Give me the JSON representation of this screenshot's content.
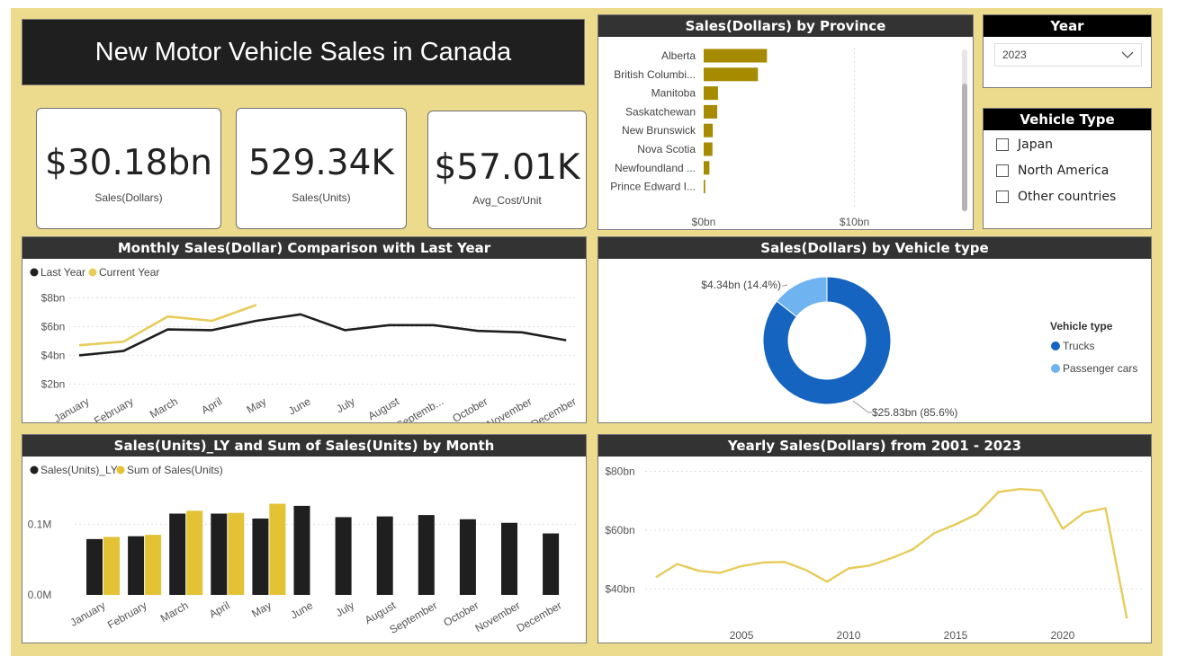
{
  "dashboard_title": "New Motor Vehicle Sales in Canada",
  "kpis": [
    {
      "value": "$30.18bn",
      "label": "Sales(Dollars)"
    },
    {
      "value": "529.34K",
      "label": "Sales(Units)"
    },
    {
      "value": "$57.01K",
      "label": "Avg_Cost/Unit"
    }
  ],
  "year_slicer": {
    "title": "Year",
    "selected": "2023"
  },
  "vehicle_type_slicer": {
    "title": "Vehicle Type",
    "options": [
      "Japan",
      "North America",
      "Other countries"
    ]
  },
  "colors": {
    "background": "#ECDB8C",
    "header": "#333333",
    "gold": "#A68A00",
    "yellow": "#E6CC5A",
    "dark": "#1F1F1F",
    "blue": "#1565C0",
    "lightblue": "#6FB4F0",
    "bar_yellow": "#E3C233"
  },
  "icons": {
    "dropdown": "chevron-down-icon",
    "checkbox": "checkbox-icon",
    "legend_dot": "legend-dot-icon"
  },
  "chart_data": [
    {
      "id": "province",
      "type": "bar",
      "orientation": "horizontal",
      "title": "Sales(Dollars) by Province",
      "categories": [
        "Alberta",
        "British Columbi...",
        "Manitoba",
        "Saskatchewan",
        "New Brunswick",
        "Nova Scotia",
        "Newfoundland ...",
        "Prince Edward I..."
      ],
      "values": [
        4.2,
        3.6,
        0.95,
        0.9,
        0.6,
        0.58,
        0.38,
        0.1
      ],
      "xlim": [
        0,
        16
      ],
      "xticks": [
        {
          "v": 0,
          "label": "$0bn"
        },
        {
          "v": 10,
          "label": "$10bn"
        }
      ]
    },
    {
      "id": "monthly_dollars",
      "type": "line",
      "title": "Monthly Sales(Dollar) Comparison with Last Year",
      "categories": [
        "January",
        "February",
        "March",
        "April",
        "May",
        "June",
        "July",
        "August",
        "Septemb...",
        "October",
        "November",
        "December"
      ],
      "series": [
        {
          "name": "Last Year",
          "values": [
            4.0,
            4.3,
            5.8,
            5.75,
            6.4,
            6.85,
            5.75,
            6.1,
            6.1,
            5.7,
            5.6,
            5.05
          ]
        },
        {
          "name": "Current Year",
          "values": [
            4.7,
            4.95,
            6.7,
            6.4,
            7.5,
            null,
            null,
            null,
            null,
            null,
            null,
            null
          ]
        }
      ],
      "ylim": [
        1.4,
        8.4
      ],
      "yticks": [
        {
          "v": 2,
          "label": "$2bn"
        },
        {
          "v": 4,
          "label": "$4bn"
        },
        {
          "v": 6,
          "label": "$6bn"
        },
        {
          "v": 8,
          "label": "$8bn"
        }
      ],
      "legend": "top-left"
    },
    {
      "id": "vehicle_type",
      "type": "pie",
      "title": "Sales(Dollars) by Vehicle type",
      "legend_title": "Vehicle type",
      "slices": [
        {
          "name": "Trucks",
          "value": 25.83,
          "label": "$25.83bn (85.6%)"
        },
        {
          "name": "Passenger cars",
          "value": 4.34,
          "label": "$4.34bn (14.4%)"
        }
      ]
    },
    {
      "id": "monthly_units",
      "type": "bar",
      "title": "Sales(Units)_LY and Sum of Sales(Units) by Month",
      "categories": [
        "January",
        "February",
        "March",
        "April",
        "May",
        "June",
        "July",
        "August",
        "September",
        "October",
        "November",
        "December"
      ],
      "series": [
        {
          "name": "Sales(Units)_LY",
          "values": [
            0.079,
            0.083,
            0.115,
            0.115,
            0.108,
            0.126,
            0.11,
            0.111,
            0.113,
            0.107,
            0.102,
            0.087
          ]
        },
        {
          "name": "Sum of Sales(Units)",
          "values": [
            0.082,
            0.085,
            0.119,
            0.116,
            0.129,
            null,
            null,
            null,
            null,
            null,
            null,
            null
          ]
        }
      ],
      "ylim": [
        0,
        0.15
      ],
      "yticks": [
        {
          "v": 0,
          "label": "0.0M"
        },
        {
          "v": 0.1,
          "label": "0.1M"
        }
      ],
      "legend": "top-left"
    },
    {
      "id": "yearly",
      "type": "line",
      "title": "Yearly Sales(Dollars) from 2001 - 2023",
      "x": [
        2001,
        2002,
        2003,
        2004,
        2005,
        2006,
        2007,
        2008,
        2009,
        2010,
        2011,
        2012,
        2013,
        2014,
        2015,
        2016,
        2017,
        2018,
        2019,
        2020,
        2021,
        2022,
        2023
      ],
      "series": [
        {
          "values": [
            44,
            48.5,
            46.2,
            45.5,
            47.8,
            49,
            49.2,
            46.5,
            42.5,
            47,
            48,
            50.5,
            53.5,
            59,
            62,
            65.5,
            73,
            74,
            73.5,
            60.5,
            66,
            67.5,
            30
          ]
        }
      ],
      "xlim": [
        2000.5,
        2023.7
      ],
      "ylim": [
        27,
        82
      ],
      "xticks": [
        2005,
        2010,
        2015,
        2020
      ],
      "yticks": [
        {
          "v": 40,
          "label": "$40bn"
        },
        {
          "v": 60,
          "label": "$60bn"
        },
        {
          "v": 80,
          "label": "$80bn"
        }
      ]
    }
  ]
}
